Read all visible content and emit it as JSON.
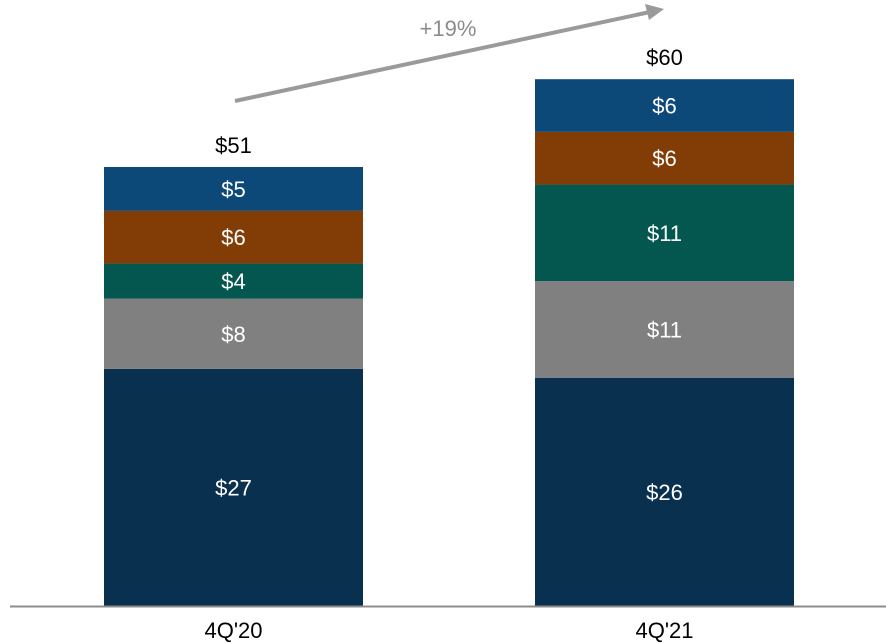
{
  "chart_data": {
    "type": "bar",
    "stacked": true,
    "categories": [
      "4Q'20",
      "4Q'21"
    ],
    "series": [
      {
        "values": [
          27,
          26
        ],
        "labels": [
          "$27",
          "$26"
        ],
        "color": "#0a3050"
      },
      {
        "values": [
          8,
          11
        ],
        "labels": [
          "$8",
          "$11"
        ],
        "color": "#808080"
      },
      {
        "values": [
          4,
          11
        ],
        "labels": [
          "$4",
          "$11"
        ],
        "color": "#03574f"
      },
      {
        "values": [
          6,
          6
        ],
        "labels": [
          "$6",
          "$6"
        ],
        "color": "#823c06"
      },
      {
        "values": [
          5,
          6
        ],
        "labels": [
          "$5",
          "$6"
        ],
        "color": "#0c4878"
      }
    ],
    "totals": [
      51,
      60
    ],
    "total_labels": [
      "$51",
      "$60"
    ],
    "growth_annotation": "+19%",
    "axis_color": "#8c8c8c",
    "arrow_color": "#9a9a9a"
  }
}
